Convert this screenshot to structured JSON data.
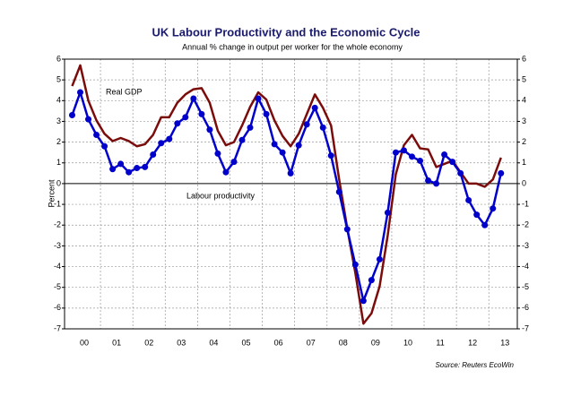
{
  "chart_data": {
    "type": "line",
    "title": "UK Labour Productivity and the Economic Cycle",
    "subtitle": "Annual % change in output per worker for the whole economy",
    "y_label": "Percent",
    "source": "Source: Reuters EcoWin",
    "annotations": [
      "Real GDP",
      "Labour productivity"
    ],
    "x": [
      2000.125,
      2000.375,
      2000.625,
      2000.875,
      2001.125,
      2001.375,
      2001.625,
      2001.875,
      2002.125,
      2002.375,
      2002.625,
      2002.875,
      2003.125,
      2003.375,
      2003.625,
      2003.875,
      2004.125,
      2004.375,
      2004.625,
      2004.875,
      2005.125,
      2005.375,
      2005.625,
      2005.875,
      2006.125,
      2006.375,
      2006.625,
      2006.875,
      2007.125,
      2007.375,
      2007.625,
      2007.875,
      2008.125,
      2008.375,
      2008.625,
      2008.875,
      2009.125,
      2009.375,
      2009.625,
      2009.875,
      2010.125,
      2010.375,
      2010.625,
      2010.875,
      2011.125,
      2011.375,
      2011.625,
      2011.875,
      2012.125,
      2012.375,
      2012.625,
      2012.875,
      2013.125,
      2013.375
    ],
    "series": [
      {
        "name": "Real GDP",
        "color": "#7b0c0c",
        "markers": false,
        "values": [
          4.7,
          5.7,
          4.0,
          3.05,
          2.4,
          2.05,
          2.2,
          2.05,
          1.8,
          1.9,
          2.35,
          3.2,
          3.2,
          3.9,
          4.3,
          4.55,
          4.6,
          3.9,
          2.55,
          1.85,
          2.0,
          2.8,
          3.7,
          4.4,
          4.05,
          3.05,
          2.3,
          1.8,
          2.4,
          3.35,
          4.3,
          3.65,
          2.8,
          0.2,
          -2.15,
          -4.3,
          -6.75,
          -6.25,
          -4.95,
          -2.5,
          0.45,
          1.85,
          2.35,
          1.7,
          1.65,
          0.8,
          0.95,
          1.1,
          0.55,
          0,
          0,
          -0.15,
          0.2,
          1.25
        ]
      },
      {
        "name": "Labour productivity",
        "color": "#0000cc",
        "markers": true,
        "values": [
          3.3,
          4.4,
          3.1,
          2.35,
          1.8,
          0.7,
          0.95,
          0.55,
          0.75,
          0.8,
          1.4,
          1.95,
          2.15,
          2.9,
          3.2,
          4.1,
          3.35,
          2.6,
          1.45,
          0.55,
          1.05,
          2.1,
          2.7,
          4.1,
          3.35,
          1.9,
          1.5,
          0.5,
          1.85,
          2.85,
          3.65,
          2.7,
          1.35,
          -0.4,
          -2.2,
          -3.9,
          -5.65,
          -4.65,
          -3.65,
          -1.4,
          1.5,
          1.6,
          1.3,
          1.1,
          0.15,
          0,
          1.4,
          1.05,
          0.5,
          -0.8,
          -1.5,
          -2.0,
          -1.2,
          0.5
        ]
      }
    ],
    "xlim": [
      1999.89,
      2013.88
    ],
    "xticks": [
      {
        "value": 2000.5,
        "label": "00"
      },
      {
        "value": 2001.5,
        "label": "01"
      },
      {
        "value": 2002.5,
        "label": "02"
      },
      {
        "value": 2003.5,
        "label": "03"
      },
      {
        "value": 2004.5,
        "label": "04"
      },
      {
        "value": 2005.5,
        "label": "05"
      },
      {
        "value": 2006.5,
        "label": "06"
      },
      {
        "value": 2007.5,
        "label": "07"
      },
      {
        "value": 2008.5,
        "label": "08"
      },
      {
        "value": 2009.5,
        "label": "09"
      },
      {
        "value": 2010.5,
        "label": "10"
      },
      {
        "value": 2011.5,
        "label": "11"
      },
      {
        "value": 2012.5,
        "label": "12"
      },
      {
        "value": 2013.5,
        "label": "13"
      }
    ],
    "xgrid": [
      2001,
      2002,
      2003,
      2004,
      2005,
      2006,
      2007,
      2008,
      2009,
      2010,
      2011,
      2012,
      2013
    ],
    "ylim": [
      -7,
      6
    ],
    "yticks": [
      -7,
      -6,
      -5,
      -4,
      -3,
      -2,
      -1,
      0,
      1,
      2,
      3,
      4,
      5,
      6
    ],
    "y2lim": [
      -7,
      6
    ],
    "y2ticks": [
      -7,
      -6,
      -5,
      -4,
      -3,
      -2,
      -1,
      0,
      1,
      2,
      3,
      4,
      5,
      6
    ],
    "grid": true
  }
}
